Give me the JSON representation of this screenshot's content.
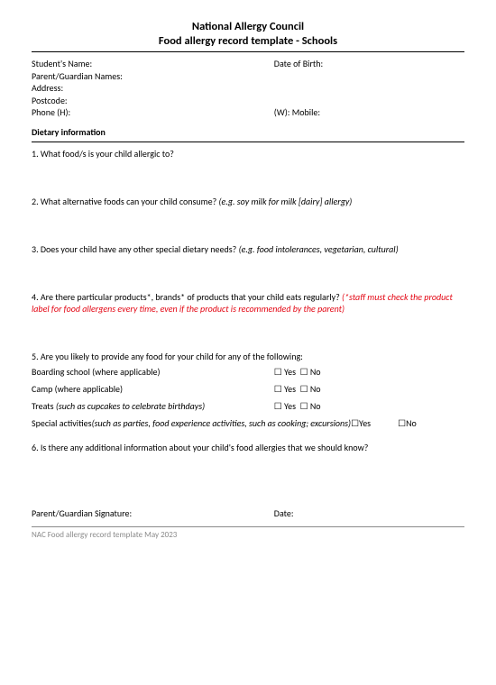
{
  "header": {
    "title": "National Allergy Council",
    "subtitle": "Food allergy record template - Schools"
  },
  "info": {
    "student_name_label": "Student's Name:",
    "dob_label": "Date of Birth:",
    "parent_label": "Parent/Guardian Names:",
    "address_label": "Address:",
    "postcode_label": "Postcode:",
    "phone_h_label": "Phone (H):",
    "phone_w_label": "(W): Mobile:"
  },
  "section1_title": "Dietary information",
  "q1": "1. What food/s is your child allergic to?",
  "q2": {
    "main": "2. What alternative foods can your child consume? ",
    "hint": "(e.g. soy milk for milk [dairy] allergy)"
  },
  "q3": {
    "main": "3. Does your child have any other special dietary needs? ",
    "hint": "(e.g. food intolerances, vegetarian, cultural)"
  },
  "q4": {
    "main": "4. Are there particular products*, brands* of products that your child eats regularly? ",
    "note": "(*staff must check the product label for food allergens every time, even if the product is recommended by the parent)"
  },
  "q5_intro": "5. Are you likely to provide any food for your child for any of the following:",
  "yes_label": "Yes",
  "no_label": "No",
  "cb_glyph": "☐",
  "options": {
    "boarding": "Boarding school (where applicable)",
    "camp": "Camp (where applicable)",
    "treats_main": "Treats ",
    "treats_hint": "(such as cupcakes to celebrate birthdays)",
    "special_main": "Special activities ",
    "special_hint": "(such as parties, food experience activities, such as cooking; excursions) "
  },
  "q6": "6. Is there any additional information about your child's food allergies that we should know?",
  "signature": {
    "sig_label": "Parent/Guardian Signature:",
    "date_label": "Date:"
  },
  "footer": "NAC Food allergy record template May 2023"
}
